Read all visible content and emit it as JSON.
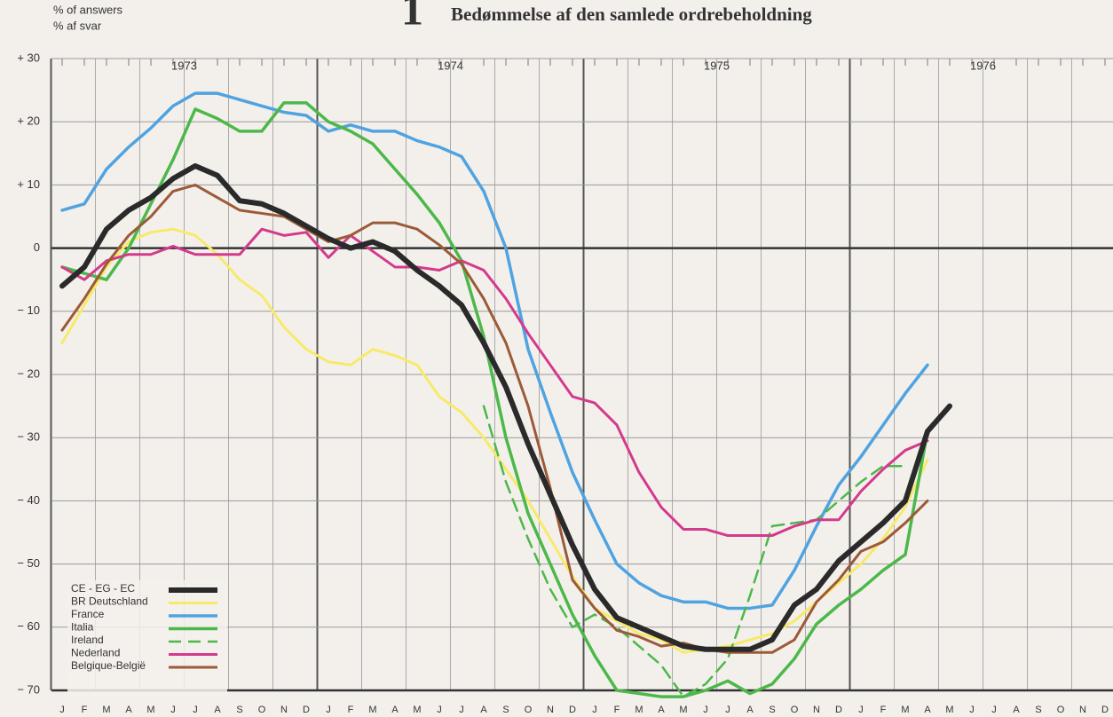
{
  "chart_data": {
    "type": "line",
    "title_number": "1",
    "title": "Bedømmelse af den samlede ordrebeholdning",
    "y_label_en": "% of answers",
    "y_label_da": "% af svar",
    "year_labels": [
      "1973",
      "1974",
      "1975",
      "1976"
    ],
    "categories": [
      "J",
      "F",
      "M",
      "A",
      "M",
      "J",
      "J",
      "A",
      "S",
      "O",
      "N",
      "D",
      "J",
      "F",
      "M",
      "A",
      "M",
      "J",
      "J",
      "A",
      "S",
      "O",
      "N",
      "D",
      "J",
      "F",
      "M",
      "A",
      "M",
      "J",
      "J",
      "A",
      "S",
      "O",
      "N",
      "D",
      "J",
      "F",
      "M",
      "A",
      "M",
      "J",
      "J",
      "A",
      "S",
      "O",
      "N",
      "D"
    ],
    "ylim": [
      -70,
      30
    ],
    "yticks": [
      {
        "value": 30,
        "label": "+ 30"
      },
      {
        "value": 20,
        "label": "+ 20"
      },
      {
        "value": 10,
        "label": "+ 10"
      },
      0,
      {
        "value": -10,
        "label": "− 10"
      },
      {
        "value": -20,
        "label": "− 20"
      },
      {
        "value": -30,
        "label": "− 30"
      },
      {
        "value": -40,
        "label": "− 40"
      },
      {
        "value": -50,
        "label": "− 50"
      },
      {
        "value": -60,
        "label": "− 60"
      },
      {
        "value": -70,
        "label": "− 70"
      }
    ],
    "grid": true,
    "legend": "lower left",
    "series": [
      {
        "name": "CE - EG - EC",
        "color": "#2a2a2a",
        "width": 6,
        "values": [
          -6,
          -3,
          3,
          6,
          8,
          11,
          13,
          11.5,
          7.5,
          7,
          5.5,
          3.5,
          1.5,
          0,
          1,
          -0.5,
          -3.5,
          -6,
          -9,
          -15,
          -22,
          -31,
          -39,
          -47,
          -54,
          -58.5,
          -60,
          -61.5,
          -63,
          -63.5,
          -63.5,
          -63.5,
          -62,
          -56.5,
          -54,
          -49.5,
          -46.5,
          -43.5,
          -40,
          -29,
          -25,
          null,
          null,
          null,
          null,
          null,
          null,
          null
        ]
      },
      {
        "name": "BR Deutschland",
        "color": "#f7ea6a",
        "width": 3,
        "values": [
          -15,
          -9,
          -3,
          1,
          2.5,
          3,
          2,
          -1,
          -5,
          -7.5,
          -12.5,
          -16,
          -18,
          -18.5,
          -16,
          -17,
          -18.5,
          -23.5,
          -26,
          -30,
          -35,
          -40,
          -46,
          -52,
          -57,
          -59,
          -61,
          -62,
          -64,
          -63.5,
          -63,
          -62,
          -61,
          -59,
          -56,
          -53,
          -50,
          -46,
          -41,
          -33.5,
          null,
          null,
          null,
          null,
          null,
          null,
          null,
          null
        ]
      },
      {
        "name": "France",
        "color": "#4fa3e0",
        "width": 3.5,
        "values": [
          6,
          7,
          12.5,
          16,
          19,
          22.5,
          24.5,
          24.5,
          23.5,
          22.5,
          21.5,
          21,
          18.5,
          19.5,
          18.5,
          18.5,
          17,
          16,
          14.5,
          9,
          0,
          -16,
          -26,
          -35.5,
          -43,
          -50,
          -53,
          -55,
          -56,
          -56,
          -57,
          -57,
          -56.5,
          -51,
          -44,
          -37.5,
          -33,
          -28,
          -23,
          -18.5,
          null,
          null,
          null,
          null,
          null,
          null,
          null,
          null
        ]
      },
      {
        "name": "Italia",
        "color": "#4cb84a",
        "width": 3.5,
        "values": [
          -3,
          -4,
          -5,
          0,
          7,
          14,
          22,
          20.5,
          18.5,
          18.5,
          23,
          23,
          20,
          18.5,
          16.5,
          12.5,
          8.5,
          4,
          -2,
          -14,
          -30,
          -42,
          -50,
          -58,
          -64.5,
          -70,
          -70.5,
          -71,
          -71,
          -70,
          -68.5,
          -70.5,
          -69,
          -65,
          -59.5,
          -56.5,
          -54,
          -51,
          -48.5,
          -29,
          null,
          null,
          null,
          null,
          null,
          null,
          null,
          null
        ]
      },
      {
        "name": "Ireland",
        "color": "#4cb84a",
        "width": 2.5,
        "dash": true,
        "values": [
          null,
          null,
          null,
          null,
          null,
          null,
          null,
          null,
          null,
          null,
          null,
          null,
          null,
          null,
          null,
          null,
          null,
          null,
          null,
          -25,
          -37,
          -46,
          -54,
          -60,
          -58,
          -60,
          -63,
          -66,
          -71,
          -69,
          -65,
          -55,
          -44,
          -43.5,
          -43,
          -40,
          -37,
          -34.5,
          -34.5,
          null,
          null,
          null,
          null,
          null,
          null,
          null,
          null,
          null
        ]
      },
      {
        "name": "Nederland",
        "color": "#d43a8c",
        "width": 3,
        "values": [
          -3,
          -5,
          -2,
          -1,
          -1,
          0.3,
          -1,
          -1,
          -1,
          3,
          2,
          2.5,
          -1.5,
          2,
          -0.5,
          -3,
          -3,
          -3.5,
          -2,
          -3.5,
          -8,
          -13.5,
          -18.5,
          -23.5,
          -24.5,
          -28,
          -35.5,
          -41,
          -44.5,
          -44.5,
          -45.5,
          -45.5,
          -45.5,
          -44,
          -43,
          -43,
          -38.5,
          -35,
          -32,
          -30.5,
          null,
          null,
          null,
          null,
          null,
          null,
          null,
          null
        ]
      },
      {
        "name": "Belgique-België",
        "color": "#9b5a38",
        "width": 3,
        "values": [
          -13,
          -8,
          -2.5,
          2,
          5,
          9,
          10,
          8,
          6,
          5.5,
          5,
          3,
          1,
          2,
          4,
          4,
          3,
          0.5,
          -2.5,
          -8,
          -15,
          -25,
          -38,
          -52.5,
          -57,
          -60.5,
          -61.5,
          -63,
          -62.5,
          -63.5,
          -64,
          -64,
          -64,
          -62,
          -56,
          -52.5,
          -48,
          -46.5,
          -43.5,
          -40,
          null,
          null,
          null,
          null,
          null,
          null,
          null,
          null
        ]
      }
    ]
  }
}
